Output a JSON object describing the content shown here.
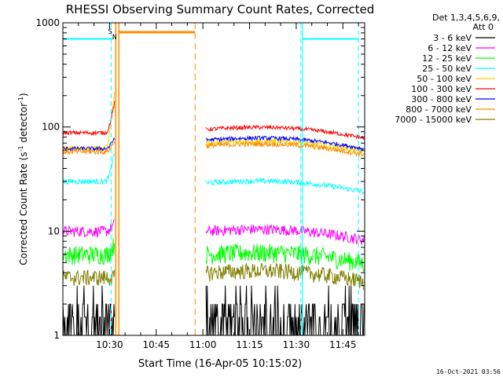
{
  "chart_data": {
    "type": "line",
    "title": "RHESSI Observing Summary Count Rates, Corrected",
    "xlabel": "Start Time (16-Apr-05 10:15:02)",
    "ylabel_main": "Corrected Count Rate (s",
    "ylabel_sup1": "-1",
    "ylabel_mid": " detector",
    "ylabel_sup2": "-1",
    "ylabel_end": ")",
    "yscale": "log",
    "ylim": [
      1,
      1000
    ],
    "xlim_minutes": [
      615.0,
      712.0
    ],
    "x_ticks": [
      {
        "label": "10:30",
        "value": 630
      },
      {
        "label": "10:45",
        "value": 645
      },
      {
        "label": "11:00",
        "value": 660
      },
      {
        "label": "11:15",
        "value": 675
      },
      {
        "label": "11:30",
        "value": 690
      },
      {
        "label": "11:45",
        "value": 705
      }
    ],
    "y_ticks": [
      {
        "label": "1",
        "value": 1
      },
      {
        "label": "10",
        "value": 10
      },
      {
        "label": "100",
        "value": 100
      },
      {
        "label": "1000",
        "value": 1000
      }
    ],
    "legend_header": [
      "Det 1,3,4,5,6,9,",
      "Att 0"
    ],
    "legend_position": "right",
    "series": [
      {
        "name": "3 - 6 keV",
        "color": "#000000",
        "before": 1.6,
        "after": 1.6,
        "spike": 1.0,
        "noise": 0.35
      },
      {
        "name": "6 - 12 keV",
        "color": "#ff00ff",
        "before": 10,
        "after": 10,
        "spike": 1.2,
        "noise": 0.04
      },
      {
        "name": "12 - 25 keV",
        "color": "#00ff00",
        "before": 6,
        "after": 6,
        "spike": 1.3,
        "noise": 0.07
      },
      {
        "name": "25 - 50 keV",
        "color": "#00ffff",
        "before": 30,
        "after": 29,
        "spike": 2.0,
        "noise": 0.02
      },
      {
        "name": "50 - 100 keV",
        "color": "#ffd700",
        "before": 62,
        "after": 70,
        "spike": 3.5,
        "noise": 0.02
      },
      {
        "name": "100 - 300 keV",
        "color": "#ff0000",
        "before": 88,
        "after": 95,
        "spike": 2.0,
        "noise": 0.015
      },
      {
        "name": "300 - 800 keV",
        "color": "#0000ff",
        "before": 62,
        "after": 75,
        "spike": 1.3,
        "noise": 0.015
      },
      {
        "name": "800 - 7000 keV",
        "color": "#ff8c00",
        "before": 58,
        "after": 66,
        "spike": 1.3,
        "noise": 0.02
      },
      {
        "name": "7000 - 15000 keV",
        "color": "#808000",
        "before": 3.6,
        "after": 4.0,
        "spike": 1.0,
        "noise": 0.06
      }
    ],
    "data_gap_minutes": [
      631.7,
      661.0
    ],
    "markers": {
      "cyan_dashed_minutes": [
        630.5,
        691.5,
        710.0
      ],
      "cyan_solid_minutes": [
        615.0,
        692.0,
        710.0
      ],
      "orange_solid_minutes": [
        632.0,
        633.0
      ],
      "orange_dashed_minutes": [
        657.5
      ],
      "flags": [
        {
          "label": "S",
          "color": "#ff8c00",
          "value": 630.2
        },
        {
          "label": "N",
          "color": "#00ffff",
          "value": 631.6
        }
      ],
      "orange_bar_minutes": [
        633.0,
        657.5
      ],
      "cyan_bar_left_minutes": [
        615.0,
        631.0
      ],
      "cyan_bar_right_minutes": [
        692.0,
        710.0
      ]
    }
  },
  "footer_timestamp": "16-Oct-2021 03:56"
}
